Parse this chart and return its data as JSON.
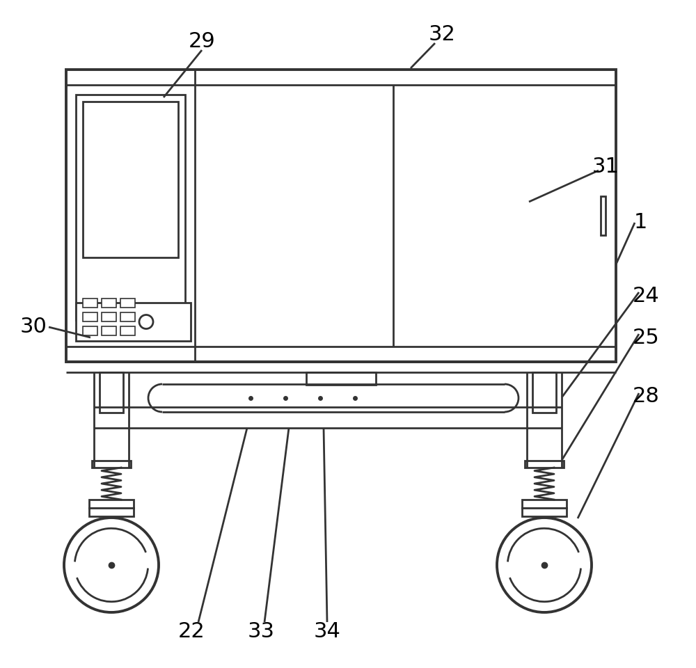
{
  "bg_color": "#ffffff",
  "line_color": "#333333",
  "lw_main": 2.0,
  "lw_thick": 2.8,
  "lw_thin": 1.2,
  "fig_w": 10.0,
  "fig_h": 9.6,
  "dpi": 100
}
